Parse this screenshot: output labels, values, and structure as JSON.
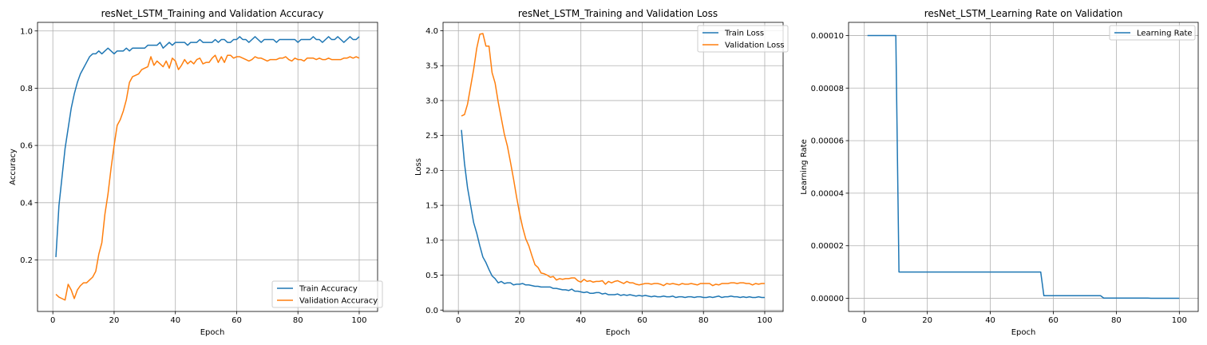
{
  "chart_data": [
    {
      "type": "line",
      "title": "resNet_LSTM_Training and Validation Accuracy",
      "xlabel": "Epoch",
      "ylabel": "Accuracy",
      "xlim": [
        -5,
        106
      ],
      "ylim": [
        0.02,
        1.03
      ],
      "xticks": [
        0,
        20,
        40,
        60,
        80,
        100
      ],
      "yticks": [
        0.2,
        0.4,
        0.6,
        0.8,
        1.0
      ],
      "ytick_labels": [
        "0.2",
        "0.4",
        "0.6",
        "0.8",
        "1.0"
      ],
      "grid": true,
      "legend": "lower-right",
      "series": [
        {
          "name": "Train Accuracy",
          "color": "#1f77b4",
          "x": [
            1,
            2,
            3,
            4,
            5,
            6,
            7,
            8,
            9,
            10,
            11,
            12,
            13,
            14,
            15,
            16,
            17,
            18,
            19,
            20,
            21,
            22,
            23,
            24,
            25,
            26,
            27,
            28,
            29,
            30,
            31,
            32,
            33,
            34,
            35,
            36,
            37,
            38,
            39,
            40,
            41,
            42,
            43,
            44,
            45,
            46,
            47,
            48,
            49,
            50,
            51,
            52,
            53,
            54,
            55,
            56,
            57,
            58,
            59,
            60,
            61,
            62,
            63,
            64,
            65,
            66,
            67,
            68,
            69,
            70,
            71,
            72,
            73,
            74,
            75,
            76,
            77,
            78,
            79,
            80,
            81,
            82,
            83,
            84,
            85,
            86,
            87,
            88,
            89,
            90,
            91,
            92,
            93,
            94,
            95,
            96,
            97,
            98,
            99,
            100
          ],
          "y": [
            0.21,
            0.39,
            0.49,
            0.59,
            0.66,
            0.73,
            0.78,
            0.82,
            0.85,
            0.87,
            0.89,
            0.91,
            0.92,
            0.92,
            0.93,
            0.92,
            0.93,
            0.94,
            0.93,
            0.92,
            0.93,
            0.93,
            0.93,
            0.94,
            0.93,
            0.94,
            0.94,
            0.94,
            0.94,
            0.94,
            0.95,
            0.95,
            0.95,
            0.95,
            0.96,
            0.94,
            0.95,
            0.96,
            0.95,
            0.96,
            0.96,
            0.96,
            0.96,
            0.95,
            0.96,
            0.96,
            0.96,
            0.97,
            0.96,
            0.96,
            0.96,
            0.96,
            0.97,
            0.96,
            0.97,
            0.97,
            0.96,
            0.96,
            0.97,
            0.97,
            0.98,
            0.97,
            0.97,
            0.96,
            0.97,
            0.98,
            0.97,
            0.96,
            0.97,
            0.97,
            0.97,
            0.97,
            0.96,
            0.97,
            0.97,
            0.97,
            0.97,
            0.97,
            0.97,
            0.96,
            0.97,
            0.97,
            0.97,
            0.97,
            0.98,
            0.97,
            0.97,
            0.96,
            0.97,
            0.98,
            0.97,
            0.97,
            0.98,
            0.97,
            0.96,
            0.97,
            0.98,
            0.97,
            0.97,
            0.98
          ]
        },
        {
          "name": "Validation Accuracy",
          "color": "#ff7f0e",
          "x": [
            1,
            2,
            3,
            4,
            5,
            6,
            7,
            8,
            9,
            10,
            11,
            12,
            13,
            14,
            15,
            16,
            17,
            18,
            19,
            20,
            21,
            22,
            23,
            24,
            25,
            26,
            27,
            28,
            29,
            30,
            31,
            32,
            33,
            34,
            35,
            36,
            37,
            38,
            39,
            40,
            41,
            42,
            43,
            44,
            45,
            46,
            47,
            48,
            49,
            50,
            51,
            52,
            53,
            54,
            55,
            56,
            57,
            58,
            59,
            60,
            61,
            62,
            63,
            64,
            65,
            66,
            67,
            68,
            69,
            70,
            71,
            72,
            73,
            74,
            75,
            76,
            77,
            78,
            79,
            80,
            81,
            82,
            83,
            84,
            85,
            86,
            87,
            88,
            89,
            90,
            91,
            92,
            93,
            94,
            95,
            96,
            97,
            98,
            99,
            100
          ],
          "y": [
            0.08,
            0.07,
            0.065,
            0.06,
            0.115,
            0.095,
            0.065,
            0.095,
            0.11,
            0.12,
            0.12,
            0.13,
            0.14,
            0.16,
            0.22,
            0.26,
            0.36,
            0.43,
            0.52,
            0.6,
            0.67,
            0.69,
            0.72,
            0.76,
            0.82,
            0.84,
            0.845,
            0.85,
            0.865,
            0.87,
            0.875,
            0.91,
            0.88,
            0.895,
            0.885,
            0.875,
            0.895,
            0.87,
            0.905,
            0.895,
            0.865,
            0.88,
            0.9,
            0.885,
            0.895,
            0.885,
            0.9,
            0.905,
            0.885,
            0.89,
            0.89,
            0.905,
            0.915,
            0.89,
            0.91,
            0.89,
            0.915,
            0.915,
            0.905,
            0.91,
            0.91,
            0.905,
            0.9,
            0.895,
            0.9,
            0.91,
            0.905,
            0.905,
            0.9,
            0.895,
            0.9,
            0.9,
            0.9,
            0.905,
            0.905,
            0.91,
            0.9,
            0.895,
            0.905,
            0.9,
            0.9,
            0.895,
            0.905,
            0.905,
            0.905,
            0.9,
            0.905,
            0.9,
            0.9,
            0.905,
            0.9,
            0.9,
            0.9,
            0.9,
            0.905,
            0.905,
            0.91,
            0.905,
            0.91,
            0.905
          ]
        }
      ]
    },
    {
      "type": "line",
      "title": "resNet_LSTM_Training and Validation Loss",
      "xlabel": "Epoch",
      "ylabel": "Loss",
      "xlim": [
        -5,
        106
      ],
      "ylim": [
        -0.02,
        4.12
      ],
      "xticks": [
        0,
        20,
        40,
        60,
        80,
        100
      ],
      "yticks": [
        0.0,
        0.5,
        1.0,
        1.5,
        2.0,
        2.5,
        3.0,
        3.5,
        4.0
      ],
      "ytick_labels": [
        "0.0",
        "0.5",
        "1.0",
        "1.5",
        "2.0",
        "2.5",
        "3.0",
        "3.5",
        "4.0"
      ],
      "grid": true,
      "legend": "top-right",
      "series": [
        {
          "name": "Train Loss",
          "color": "#1f77b4",
          "x": [
            1,
            2,
            3,
            4,
            5,
            6,
            7,
            8,
            9,
            10,
            11,
            12,
            13,
            14,
            15,
            16,
            17,
            18,
            19,
            20,
            21,
            22,
            23,
            24,
            25,
            26,
            27,
            28,
            29,
            30,
            31,
            32,
            33,
            34,
            35,
            36,
            37,
            38,
            39,
            40,
            41,
            42,
            43,
            44,
            45,
            46,
            47,
            48,
            49,
            50,
            51,
            52,
            53,
            54,
            55,
            56,
            57,
            58,
            59,
            60,
            61,
            62,
            63,
            64,
            65,
            66,
            67,
            68,
            69,
            70,
            71,
            72,
            73,
            74,
            75,
            76,
            77,
            78,
            79,
            80,
            81,
            82,
            83,
            84,
            85,
            86,
            87,
            88,
            89,
            90,
            91,
            92,
            93,
            94,
            95,
            96,
            97,
            98,
            99,
            100
          ],
          "y": [
            2.58,
            2.1,
            1.75,
            1.5,
            1.25,
            1.1,
            0.92,
            0.76,
            0.68,
            0.58,
            0.49,
            0.45,
            0.39,
            0.41,
            0.38,
            0.39,
            0.39,
            0.36,
            0.37,
            0.37,
            0.38,
            0.36,
            0.36,
            0.35,
            0.34,
            0.34,
            0.33,
            0.33,
            0.33,
            0.33,
            0.31,
            0.31,
            0.3,
            0.29,
            0.29,
            0.28,
            0.3,
            0.27,
            0.27,
            0.26,
            0.25,
            0.26,
            0.24,
            0.24,
            0.25,
            0.25,
            0.23,
            0.24,
            0.22,
            0.22,
            0.22,
            0.23,
            0.21,
            0.22,
            0.21,
            0.22,
            0.21,
            0.2,
            0.21,
            0.2,
            0.21,
            0.2,
            0.19,
            0.2,
            0.19,
            0.19,
            0.2,
            0.19,
            0.19,
            0.2,
            0.18,
            0.19,
            0.19,
            0.18,
            0.19,
            0.19,
            0.18,
            0.19,
            0.19,
            0.18,
            0.18,
            0.19,
            0.18,
            0.19,
            0.2,
            0.18,
            0.19,
            0.19,
            0.2,
            0.19,
            0.19,
            0.18,
            0.19,
            0.18,
            0.19,
            0.18,
            0.18,
            0.19,
            0.18,
            0.18
          ]
        },
        {
          "name": "Validation Loss",
          "color": "#ff7f0e",
          "x": [
            1,
            2,
            3,
            4,
            5,
            6,
            7,
            8,
            9,
            10,
            11,
            12,
            13,
            14,
            15,
            16,
            17,
            18,
            19,
            20,
            21,
            22,
            23,
            24,
            25,
            26,
            27,
            28,
            29,
            30,
            31,
            32,
            33,
            34,
            35,
            36,
            37,
            38,
            39,
            40,
            41,
            42,
            43,
            44,
            45,
            46,
            47,
            48,
            49,
            50,
            51,
            52,
            53,
            54,
            55,
            56,
            57,
            58,
            59,
            60,
            61,
            62,
            63,
            64,
            65,
            66,
            67,
            68,
            69,
            70,
            71,
            72,
            73,
            74,
            75,
            76,
            77,
            78,
            79,
            80,
            81,
            82,
            83,
            84,
            85,
            86,
            87,
            88,
            89,
            90,
            91,
            92,
            93,
            94,
            95,
            96,
            97,
            98,
            99,
            100
          ],
          "y": [
            2.78,
            2.8,
            2.95,
            3.2,
            3.45,
            3.75,
            3.95,
            3.96,
            3.78,
            3.78,
            3.4,
            3.25,
            2.98,
            2.75,
            2.52,
            2.35,
            2.12,
            1.88,
            1.62,
            1.38,
            1.18,
            1.02,
            0.92,
            0.78,
            0.65,
            0.61,
            0.53,
            0.52,
            0.5,
            0.47,
            0.48,
            0.43,
            0.45,
            0.44,
            0.45,
            0.45,
            0.46,
            0.46,
            0.42,
            0.4,
            0.44,
            0.41,
            0.42,
            0.4,
            0.41,
            0.41,
            0.42,
            0.37,
            0.41,
            0.39,
            0.41,
            0.42,
            0.4,
            0.38,
            0.41,
            0.39,
            0.39,
            0.37,
            0.36,
            0.37,
            0.38,
            0.38,
            0.37,
            0.38,
            0.38,
            0.37,
            0.35,
            0.38,
            0.37,
            0.38,
            0.37,
            0.36,
            0.38,
            0.37,
            0.37,
            0.38,
            0.37,
            0.36,
            0.38,
            0.38,
            0.38,
            0.38,
            0.35,
            0.37,
            0.36,
            0.38,
            0.38,
            0.38,
            0.39,
            0.39,
            0.38,
            0.39,
            0.39,
            0.38,
            0.38,
            0.36,
            0.38,
            0.37,
            0.38,
            0.38
          ]
        }
      ]
    },
    {
      "type": "line",
      "title": "resNet_LSTM_Learning Rate on Validation",
      "xlabel": "Epoch",
      "ylabel": "Learning Rate",
      "xlim": [
        -5,
        106
      ],
      "ylim": [
        -5e-06,
        0.000105
      ],
      "xticks": [
        0,
        20,
        40,
        60,
        80,
        100
      ],
      "yticks": [
        0,
        2e-05,
        4e-05,
        6e-05,
        8e-05,
        0.0001
      ],
      "ytick_labels": [
        "0.00000",
        "0.00002",
        "0.00004",
        "0.00006",
        "0.00008",
        "0.00010"
      ],
      "grid": true,
      "legend": "top-right",
      "series": [
        {
          "name": "Learning Rate",
          "color": "#1f77b4",
          "x": [
            1,
            10,
            11,
            56,
            57,
            75,
            76,
            90,
            91,
            100
          ],
          "y": [
            0.0001,
            0.0001,
            1e-05,
            1e-05,
            1e-06,
            1e-06,
            1e-07,
            1e-07,
            1e-08,
            1e-08
          ]
        }
      ]
    }
  ]
}
